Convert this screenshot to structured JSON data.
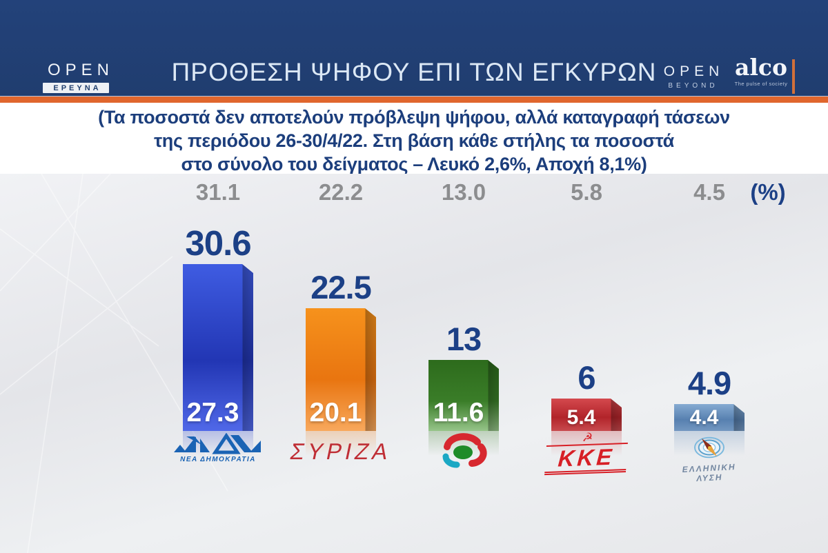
{
  "header": {
    "show_logo": {
      "brand": "OPEN",
      "label": "ΕΡΕΥΝΑ"
    },
    "title": "ΠΡΟΘΕΣΗ ΨΗΦΟΥ ΕΠΙ ΤΩΝ ΕΓΚΥΡΩΝ",
    "channel_logo": {
      "brand": "OPEN",
      "label": "BEYOND"
    },
    "pollster_logo": {
      "brand": "alco",
      "tagline": "The pulse of society"
    },
    "colors": {
      "header_bg": "#21406f",
      "accent_orange": "#e0662d"
    }
  },
  "disclaimer": {
    "lines": [
      "(Τα ποσοστά δεν αποτελούν πρόβλεψη ψήφου, αλλά καταγραφή τάσεων",
      "της περιόδου 26-30/4/22. Στη βάση κάθε στήλης τα ποσοστά",
      "στο σύνολο του δείγματος – Λευκό 2,6%, Αποχή 8,1%)"
    ]
  },
  "chart_data": {
    "type": "bar",
    "title": "ΠΡΟΘΕΣΗ ΨΗΦΟΥ ΕΠΙ ΤΩΝ ΕΓΚΥΡΩΝ",
    "unit_label": "(%)",
    "categories": [
      "ΝΕΑ ΔΗΜΟΚΡΑΤΙΑ",
      "ΣΥΡΙΖΑ",
      "ΠΑΣΟΚ",
      "ΚΚΕ",
      "ΕΛΛΗΝΙΚΗ ΛΥΣΗ"
    ],
    "series": [
      {
        "name": "top gray row",
        "values": [
          31.1,
          22.2,
          13.0,
          5.8,
          4.5
        ]
      },
      {
        "name": "bar values (επί των εγκύρων)",
        "values": [
          30.6,
          22.5,
          13,
          6,
          4.9
        ]
      },
      {
        "name": "base of column (στο σύνολο του δείγματος)",
        "values": [
          27.3,
          20.1,
          11.6,
          5.4,
          4.4
        ]
      }
    ],
    "ylim": [
      0,
      32
    ],
    "grid": false,
    "legend": "none"
  },
  "parties": [
    {
      "name": "ΝΕΑ ΔΗΜΟΚΡΑΤΙΑ",
      "top_value": "31.1",
      "bar_value": "30.6",
      "base_value": "27.3",
      "value": 30.6,
      "color": "#2b46cc",
      "grad_top": "#3f5ce2",
      "grad_mid": "#2236b4",
      "grad_bottom": "#5068e8",
      "top_face": "#5f76e8",
      "logo_label": "ΝΕΑ ΔΗΜΟΚΡΑΤΙΑ"
    },
    {
      "name": "ΣΥΡΙΖΑ",
      "top_value": "22.2",
      "bar_value": "22.5",
      "base_value": "20.1",
      "value": 22.5,
      "color": "#ef8120",
      "grad_top": "#f6921c",
      "grad_mid": "#e97510",
      "grad_bottom": "#f8a85c",
      "top_face": "#f8a85c",
      "logo_label": "ΣΥΡΙΖΑ"
    },
    {
      "name": "ΠΑΣΟΚ",
      "top_value": "13.0",
      "bar_value": "13",
      "base_value": "11.6",
      "value": 13,
      "color": "#3a7d28",
      "grad_top": "#2d6b1c",
      "grad_mid": "#3a7d28",
      "grad_bottom": "#96c489",
      "top_face": "#6aa55a",
      "logo_label": ""
    },
    {
      "name": "ΚΚΕ",
      "top_value": "5.8",
      "bar_value": "6",
      "base_value": "5.4",
      "value": 6,
      "color": "#c02a30",
      "grad_top": "#d4494e",
      "grad_mid": "#b2242a",
      "grad_bottom": "#c84a4e",
      "top_face": "#e37b7d",
      "logo_label": "ΚΚΕ",
      "logo_emblem": "☭"
    },
    {
      "name": "ΕΛΛΗΝΙΚΗ ΛΥΣΗ",
      "top_value": "4.5",
      "bar_value": "4.9",
      "base_value": "4.4",
      "value": 4.9,
      "color": "#5e87b5",
      "grad_top": "#85abd2",
      "grad_mid": "#5780b0",
      "grad_bottom": "#7397c0",
      "top_face": "#b3cce4",
      "logo_line1": "ΕΛΛΗΝΙΚΗ",
      "logo_line2": "ΛΥΣΗ"
    }
  ]
}
